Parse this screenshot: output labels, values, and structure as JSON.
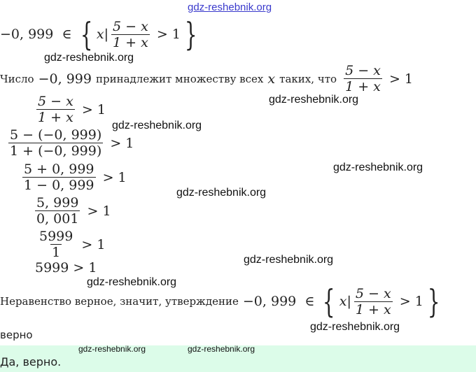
{
  "watermark": "gdz-reshebnik.org",
  "statement": {
    "value": "−0, 999",
    "in": "∈",
    "var": "x",
    "num": "5 − x",
    "den": "1 + x",
    "rel": "> 1"
  },
  "line2": {
    "prefix": "Число",
    "value": "−0, 999",
    "middle": "принадлежит множеству всех",
    "var": "x",
    "suffix": "таких, что",
    "num": "5 − x",
    "den": "1 + x",
    "rel": "> 1"
  },
  "steps": [
    {
      "num": "5 − x",
      "den": "1 + x",
      "rel": "> 1"
    },
    {
      "num": "5 − (−0, 999)",
      "den": "1 + (−0, 999)",
      "rel": "> 1"
    },
    {
      "num": "5 + 0, 999",
      "den": "1 − 0, 999",
      "rel": "> 1"
    },
    {
      "num": "5, 999",
      "den": "0, 001",
      "rel": "> 1"
    },
    {
      "num": "5999",
      "den": "1",
      "rel": "> 1"
    },
    {
      "expr": "5999 > 1"
    }
  ],
  "conclusion": {
    "text": "Неравенство верное, значит, утверждение",
    "value": "−0, 999",
    "in": "∈",
    "var": "x",
    "num": "5 − x",
    "den": "1 + x",
    "rel": "> 1",
    "verdict": "верно"
  },
  "answer": {
    "text": "Да, верно.",
    "background": "#dcfce9"
  }
}
